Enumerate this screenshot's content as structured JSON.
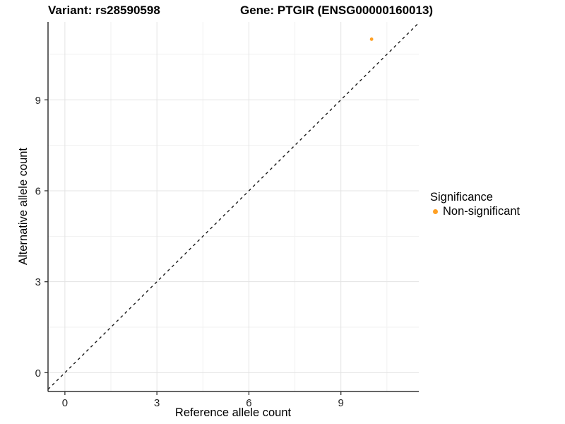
{
  "titles": {
    "left": "Variant: rs28590598",
    "right": "Gene: PTGIR (ENSG00000160013)"
  },
  "chart_data": {
    "type": "scatter",
    "title_left": "Variant: rs28590598",
    "title_right": "Gene: PTGIR (ENSG00000160013)",
    "xlabel": "Reference allele count",
    "ylabel": "Alternative allele count",
    "x_ticks": [
      0,
      3,
      6,
      9
    ],
    "y_ticks": [
      0,
      3,
      6,
      9
    ],
    "x_minor_ticks": [
      1.5,
      4.5,
      7.5,
      10.5
    ],
    "y_minor_ticks": [
      1.5,
      4.5,
      7.5,
      10.5
    ],
    "xlim": [
      -0.55,
      11.54
    ],
    "ylim": [
      -0.62,
      11.57
    ],
    "grid": true,
    "legend_position": "right",
    "reference_line": {
      "style": "dashed",
      "slope": 1,
      "intercept": 0
    },
    "series": [
      {
        "name": "Non-significant",
        "points": [
          {
            "x": 10,
            "y": 11
          }
        ]
      }
    ]
  },
  "legend": {
    "title": "Significance",
    "items": [
      {
        "label": "Non-significant",
        "color": "#FFA024"
      }
    ]
  },
  "colors": {
    "point": "#FFA024",
    "grid_major": "#e3e3e3",
    "grid_minor": "#f1f1f1",
    "axis_line": "#333333",
    "tick": "#333333",
    "dashed_line": "#1a1a1a",
    "background": "#ffffff"
  }
}
